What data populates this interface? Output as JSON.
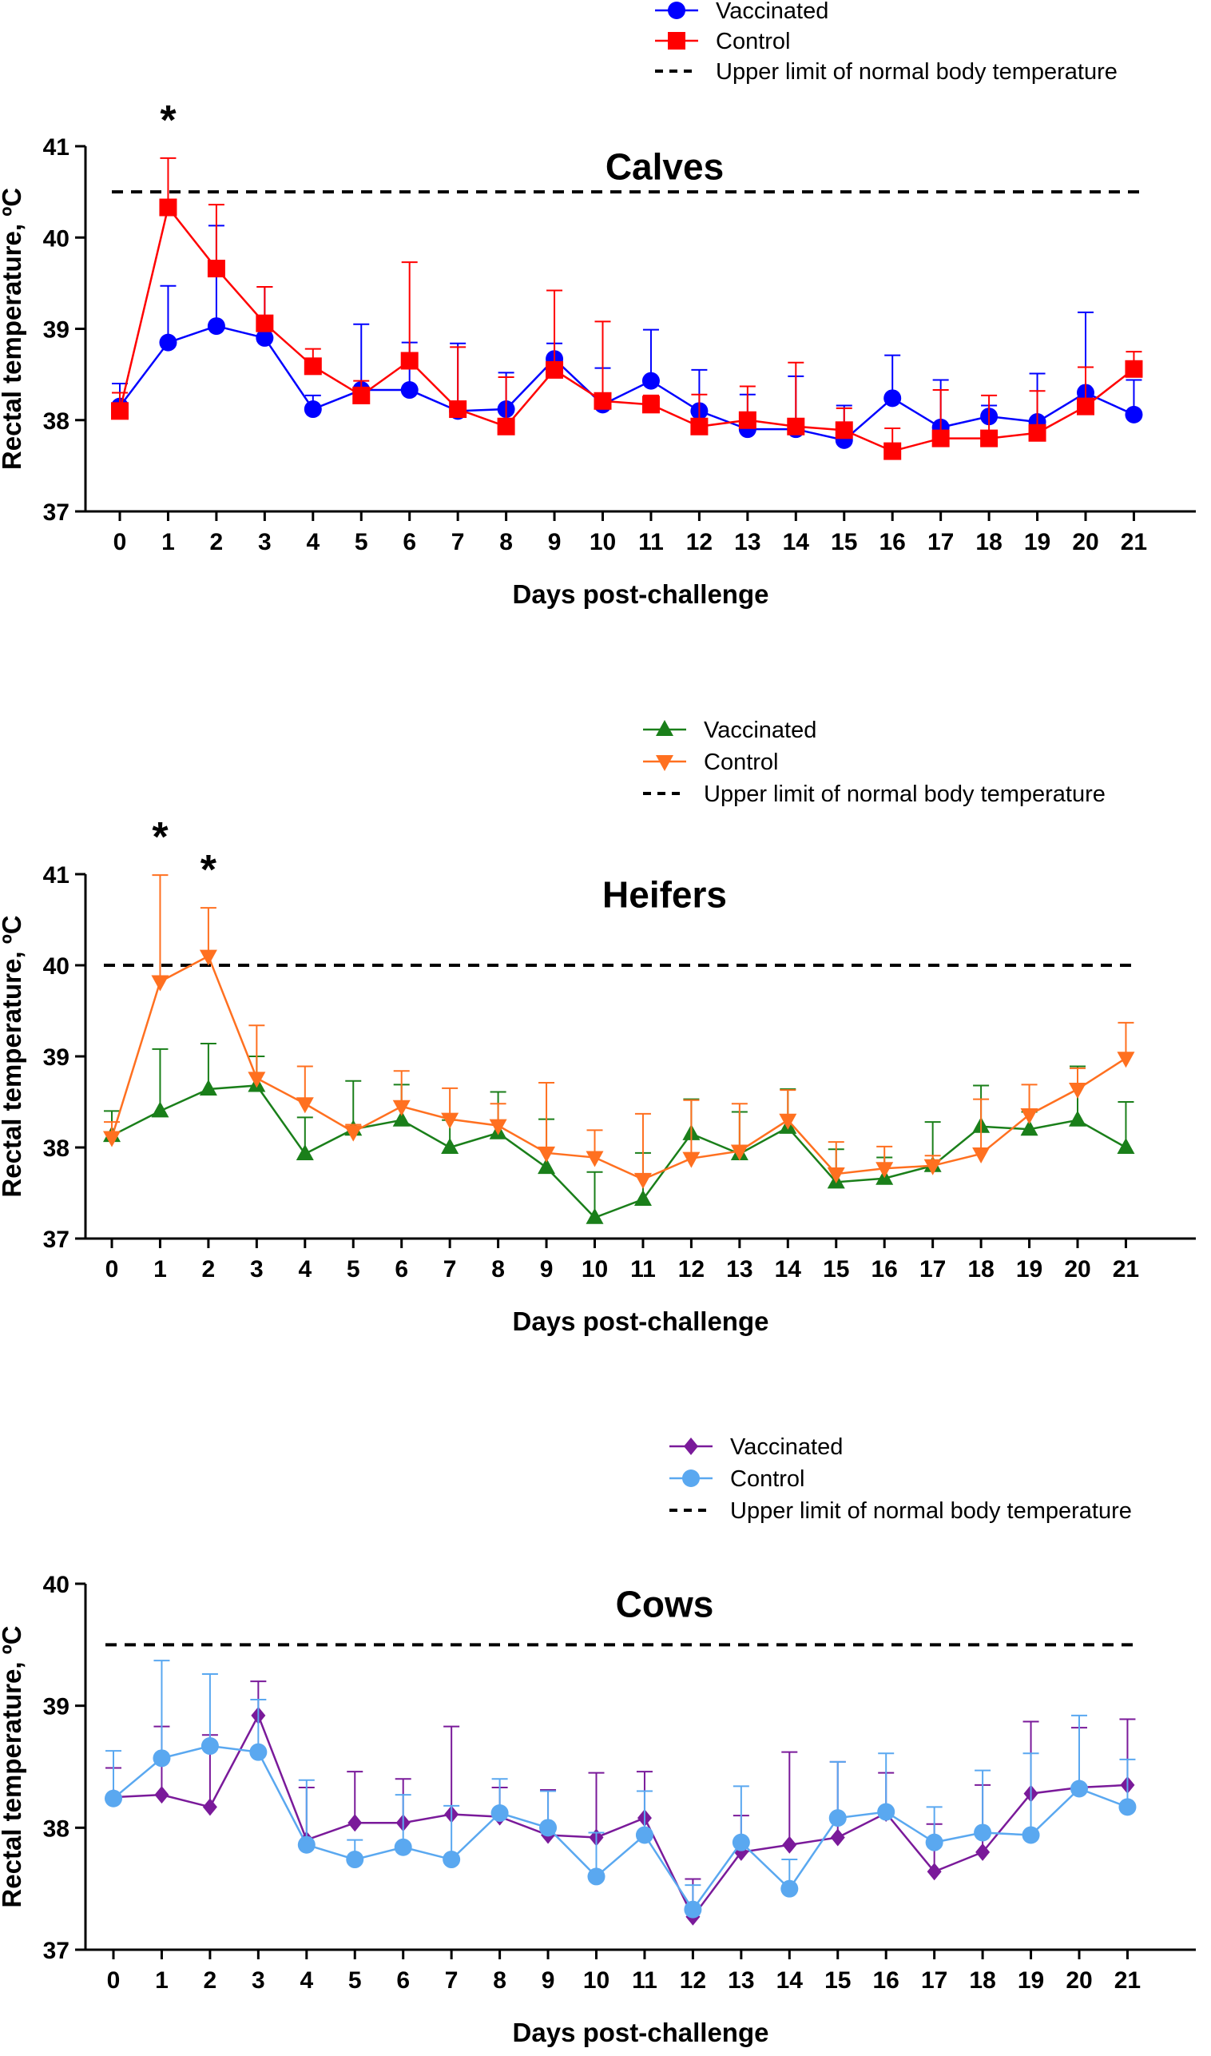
{
  "chart_data": [
    {
      "type": "line",
      "title": "Calves",
      "xlabel": "Days post-challenge",
      "ylabel": "Rectal temperature, ºC",
      "ylim": [
        37,
        41
      ],
      "yticks": [
        37,
        38,
        39,
        40,
        41
      ],
      "x": [
        0,
        1,
        2,
        3,
        4,
        5,
        6,
        7,
        8,
        9,
        10,
        11,
        12,
        13,
        14,
        15,
        16,
        17,
        18,
        19,
        20,
        21
      ],
      "reference_line": {
        "label": "Upper limit of normal body temperature",
        "value": 40.5,
        "style": "dashed",
        "color": "#000000"
      },
      "series": [
        {
          "name": "Vaccinated",
          "color": "#0000ff",
          "marker": "circle",
          "values": [
            38.15,
            38.85,
            39.03,
            38.9,
            38.12,
            38.33,
            38.33,
            38.1,
            38.12,
            38.67,
            38.17,
            38.43,
            38.1,
            37.9,
            37.9,
            37.78,
            38.24,
            37.92,
            38.04,
            37.98,
            38.3,
            38.06
          ],
          "error": [
            0.25,
            0.62,
            1.1,
            0.56,
            0.15,
            0.72,
            0.52,
            0.74,
            0.4,
            0.17,
            0.4,
            0.56,
            0.45,
            0.38,
            0.58,
            0.38,
            0.47,
            0.52,
            0.12,
            0.53,
            0.88,
            0.38
          ]
        },
        {
          "name": "Control",
          "color": "#ff0000",
          "marker": "square",
          "values": [
            38.1,
            40.33,
            39.66,
            39.06,
            38.59,
            38.27,
            38.65,
            38.12,
            37.93,
            38.55,
            38.21,
            38.17,
            37.93,
            38.0,
            37.93,
            37.89,
            37.66,
            37.8,
            37.8,
            37.86,
            38.15,
            38.56
          ],
          "error": [
            0.2,
            0.54,
            0.7,
            0.4,
            0.19,
            0.16,
            1.08,
            0.68,
            0.54,
            0.87,
            0.87,
            0.1,
            0.35,
            0.37,
            0.7,
            0.24,
            0.25,
            0.53,
            0.47,
            0.46,
            0.43,
            0.19
          ]
        }
      ],
      "annotations": [
        {
          "x": 1,
          "text": "*"
        }
      ],
      "legend": {
        "placement": "top-right"
      }
    },
    {
      "type": "line",
      "title": "Heifers",
      "xlabel": "Days post-challenge",
      "ylabel": "Rectal temperature, ºC",
      "ylim": [
        37,
        41
      ],
      "yticks": [
        37,
        38,
        39,
        40,
        41
      ],
      "x": [
        0,
        1,
        2,
        3,
        4,
        5,
        6,
        7,
        8,
        9,
        10,
        11,
        12,
        13,
        14,
        15,
        16,
        17,
        18,
        19,
        20,
        21
      ],
      "reference_line": {
        "label": "Upper limit of normal body temperature",
        "value": 40.0,
        "style": "dashed",
        "color": "#000000"
      },
      "series": [
        {
          "name": "Vaccinated",
          "color": "#1a7f1a",
          "marker": "triangle-up",
          "values": [
            38.13,
            38.4,
            38.64,
            38.68,
            37.93,
            38.2,
            38.3,
            38.0,
            38.16,
            37.78,
            37.23,
            37.43,
            38.15,
            37.93,
            38.22,
            37.62,
            37.66,
            37.8,
            38.23,
            38.2,
            38.3,
            38.0
          ],
          "error": [
            0.27,
            0.68,
            0.5,
            0.32,
            0.4,
            0.53,
            0.39,
            0.3,
            0.45,
            0.53,
            0.5,
            0.51,
            0.38,
            0.46,
            0.42,
            0.36,
            0.23,
            0.48,
            0.45,
            0.19,
            0.59,
            0.5
          ]
        },
        {
          "name": "Control",
          "color": "#ff7020",
          "marker": "triangle-down",
          "values": [
            38.11,
            39.82,
            40.1,
            38.76,
            38.48,
            38.17,
            38.45,
            38.31,
            38.24,
            37.94,
            37.89,
            37.65,
            37.88,
            37.96,
            38.3,
            37.71,
            37.77,
            37.8,
            37.93,
            38.36,
            38.64,
            38.98
          ],
          "error": [
            0.17,
            1.17,
            0.53,
            0.58,
            0.41,
            0.08,
            0.39,
            0.34,
            0.24,
            0.77,
            0.3,
            0.72,
            0.64,
            0.52,
            0.33,
            0.35,
            0.24,
            0.11,
            0.6,
            0.33,
            0.23,
            0.39
          ]
        }
      ],
      "annotations": [
        {
          "x": 1,
          "text": "*"
        },
        {
          "x": 2,
          "text": "*"
        }
      ],
      "legend": {
        "placement": "top-right"
      }
    },
    {
      "type": "line",
      "title": "Cows",
      "xlabel": "Days post-challenge",
      "ylabel": "Rectal temperature, ºC",
      "ylim": [
        37,
        40
      ],
      "yticks": [
        37,
        38,
        39,
        40
      ],
      "x": [
        0,
        1,
        2,
        3,
        4,
        5,
        6,
        7,
        8,
        9,
        10,
        11,
        12,
        13,
        14,
        15,
        16,
        17,
        18,
        19,
        20,
        21
      ],
      "reference_line": {
        "label": "Upper limit of normal body temperature",
        "value": 39.5,
        "style": "dashed",
        "color": "#000000"
      },
      "series": [
        {
          "name": "Vaccinated",
          "color": "#7a1a9a",
          "marker": "diamond",
          "values": [
            38.25,
            38.27,
            38.17,
            38.92,
            37.9,
            38.04,
            38.04,
            38.11,
            38.09,
            37.94,
            37.92,
            38.08,
            37.27,
            37.8,
            37.86,
            37.92,
            38.12,
            37.64,
            37.8,
            38.28,
            38.33,
            38.35
          ],
          "error": [
            0.24,
            0.56,
            0.59,
            0.28,
            0.43,
            0.42,
            0.36,
            0.72,
            0.24,
            0.37,
            0.53,
            0.38,
            0.31,
            0.3,
            0.76,
            0.62,
            0.33,
            0.39,
            0.55,
            0.59,
            0.49,
            0.54
          ]
        },
        {
          "name": "Control",
          "color": "#5aa8f0",
          "marker": "circle",
          "values": [
            38.24,
            38.57,
            38.67,
            38.62,
            37.86,
            37.74,
            37.84,
            37.74,
            38.12,
            38.0,
            37.6,
            37.94,
            37.33,
            37.88,
            37.5,
            38.08,
            38.13,
            37.88,
            37.96,
            37.94,
            38.32,
            38.17
          ],
          "error": [
            0.39,
            0.8,
            0.59,
            0.43,
            0.53,
            0.16,
            0.43,
            0.44,
            0.28,
            0.3,
            0.36,
            0.36,
            0.2,
            0.46,
            0.24,
            0.46,
            0.48,
            0.29,
            0.51,
            0.67,
            0.6,
            0.39
          ]
        }
      ],
      "annotations": [],
      "legend": {
        "placement": "top-right"
      }
    }
  ]
}
